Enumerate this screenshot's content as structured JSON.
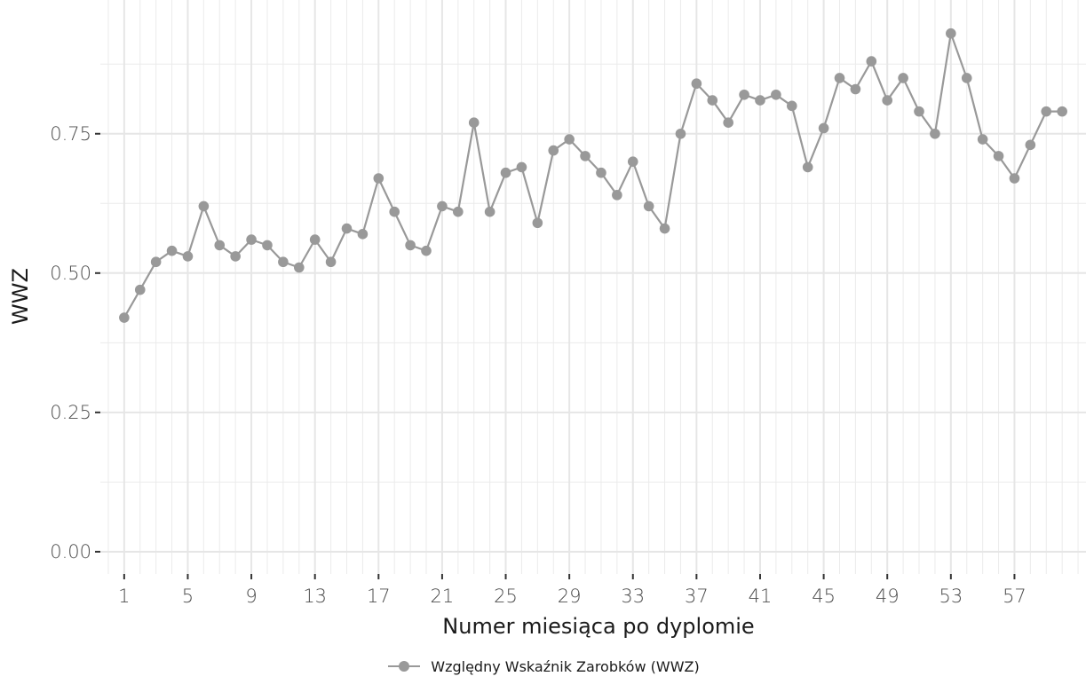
{
  "chart_data": {
    "type": "line",
    "xlabel": "Numer miesiąca po dyplomie",
    "ylabel": "WWZ",
    "xlim": [
      -0.5,
      61.5
    ],
    "ylim": [
      -0.04,
      0.99
    ],
    "x_ticks": [
      1,
      5,
      9,
      13,
      17,
      21,
      25,
      29,
      33,
      37,
      41,
      45,
      49,
      53,
      57
    ],
    "y_ticks": [
      0,
      0.25,
      0.5,
      0.75
    ],
    "y_tick_labels": [
      "0.00",
      "0.25",
      "0.50",
      "0.75"
    ],
    "grid": true,
    "legend_position": "bottom",
    "series": [
      {
        "name": "Względny Wskaźnik Zarobków (WWZ)",
        "color": "#999999",
        "x": [
          1,
          2,
          3,
          4,
          5,
          6,
          7,
          8,
          9,
          10,
          11,
          12,
          13,
          14,
          15,
          16,
          17,
          18,
          19,
          20,
          21,
          22,
          23,
          24,
          25,
          26,
          27,
          28,
          29,
          30,
          31,
          32,
          33,
          34,
          35,
          36,
          37,
          38,
          39,
          40,
          41,
          42,
          43,
          44,
          45,
          46,
          47,
          48,
          49,
          50,
          51,
          52,
          53,
          54,
          55,
          56,
          57,
          58,
          59,
          60
        ],
        "values": [
          0.42,
          0.47,
          0.52,
          0.54,
          0.53,
          0.62,
          0.55,
          0.53,
          0.56,
          0.55,
          0.52,
          0.51,
          0.56,
          0.52,
          0.58,
          0.57,
          0.67,
          0.61,
          0.55,
          0.54,
          0.62,
          0.61,
          0.77,
          0.61,
          0.68,
          0.69,
          0.59,
          0.72,
          0.74,
          0.71,
          0.68,
          0.64,
          0.7,
          0.62,
          0.58,
          0.75,
          0.84,
          0.81,
          0.77,
          0.82,
          0.81,
          0.82,
          0.8,
          0.69,
          0.76,
          0.85,
          0.83,
          0.88,
          0.81,
          0.85,
          0.79,
          0.75,
          0.93,
          0.85,
          0.74,
          0.71,
          0.67,
          0.73,
          0.79,
          0.79
        ]
      }
    ]
  }
}
